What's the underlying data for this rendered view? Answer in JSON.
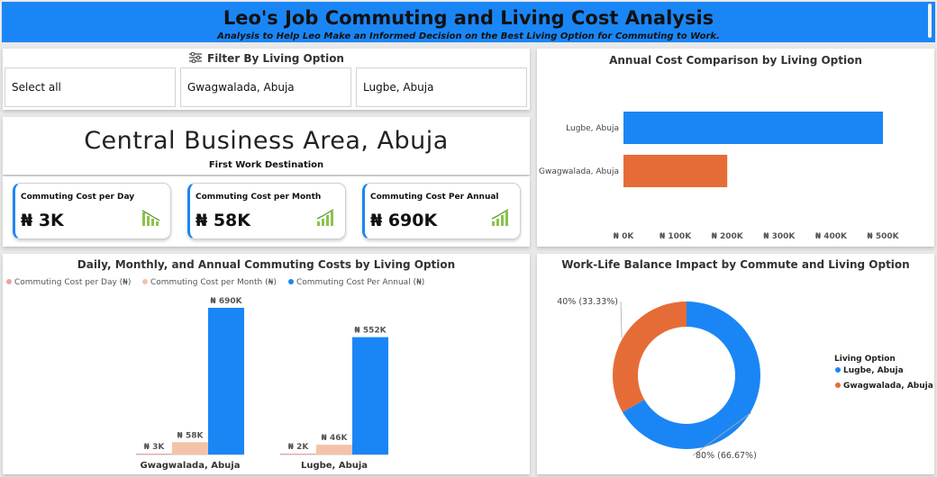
{
  "header": {
    "title": "Leo's Job Commuting and Living Cost Analysis",
    "subtitle": "Analysis to Help Leo Make an Informed Decision on the Best Living Option for Commuting to Work."
  },
  "filter": {
    "title": "Filter By Living Option",
    "options": [
      "Select all",
      "Gwagwalada, Abuja",
      "Lugbe, Abuja"
    ]
  },
  "destination": {
    "name": "Central Business Area, Abuja",
    "caption": "First Work Destination"
  },
  "kpis": [
    {
      "label": "Commuting Cost per Day",
      "value": "₦ 3K"
    },
    {
      "label": "Commuting Cost per Month",
      "value": "₦ 58K"
    },
    {
      "label": "Commuting Cost Per Annual",
      "value": "₦ 690K"
    }
  ],
  "colors": {
    "blue": "#1a86f5",
    "orange": "#e66c37",
    "peach": "#f4c2a8",
    "pink": "#e9a3a3"
  },
  "chart_data": [
    {
      "type": "bar",
      "orientation": "horizontal",
      "title": "Annual Cost Comparison by Living Option",
      "categories": [
        "Lugbe, Abuja",
        "Gwagwalada, Abuja"
      ],
      "values": [
        500000,
        200000
      ],
      "xlim": [
        0,
        500000
      ],
      "ticks": [
        "₦ 0K",
        "₦ 100K",
        "₦ 200K",
        "₦ 300K",
        "₦ 400K",
        "₦ 500K"
      ]
    },
    {
      "type": "bar",
      "title": "Daily, Monthly, and Annual Commuting Costs by Living Option",
      "categories": [
        "Gwagwalada, Abuja",
        "Lugbe, Abuja"
      ],
      "ylim": [
        0,
        690
      ],
      "series": [
        {
          "name": "Commuting Cost per Day (₦)",
          "values": [
            3,
            2
          ],
          "labels": [
            "₦ 3K",
            "₦ 2K"
          ]
        },
        {
          "name": "Commuting Cost per Month (₦)",
          "values": [
            58,
            46
          ],
          "labels": [
            "₦ 58K",
            "₦ 46K"
          ]
        },
        {
          "name": "Commuting Cost Per Annual (₦)",
          "values": [
            690,
            552
          ],
          "labels": [
            "₦ 690K",
            "₦ 552K"
          ]
        }
      ]
    },
    {
      "type": "pie",
      "donut": true,
      "title": "Work-Life Balance Impact by Commute and Living Option",
      "legend_title": "Living Option",
      "categories": [
        "Lugbe, Abuja",
        "Gwagwalada, Abuja"
      ],
      "values": [
        80,
        40
      ],
      "labels": [
        "80% (66.67%)",
        "40% (33.33%)"
      ]
    }
  ]
}
